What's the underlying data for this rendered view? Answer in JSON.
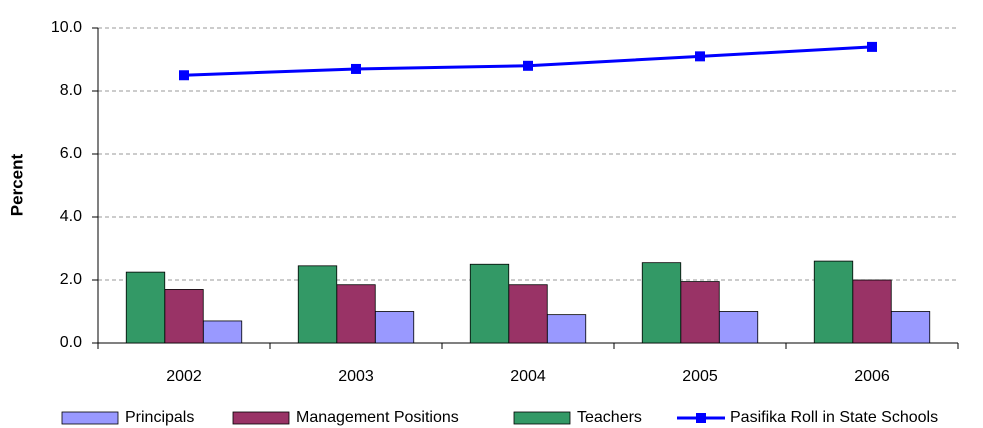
{
  "chart_data": {
    "type": "bar",
    "y_label": "Percent",
    "categories": [
      "2002",
      "2003",
      "2004",
      "2005",
      "2006"
    ],
    "series": [
      {
        "name": "Principals",
        "type": "bar",
        "color": "#9999ff",
        "values": [
          0.7,
          1.0,
          0.9,
          1.0,
          1.0
        ]
      },
      {
        "name": "Management Positions",
        "type": "bar",
        "color": "#993366",
        "values": [
          1.7,
          1.85,
          1.85,
          1.95,
          2.0
        ]
      },
      {
        "name": "Teachers",
        "type": "bar",
        "color": "#339966",
        "values": [
          2.25,
          2.45,
          2.5,
          2.55,
          2.6
        ]
      },
      {
        "name": "Pasifika Roll in State Schools",
        "type": "line",
        "color": "#0000ff",
        "values": [
          8.5,
          8.7,
          8.8,
          9.1,
          9.4
        ]
      }
    ],
    "ylim": [
      0,
      10
    ],
    "yticks": [
      {
        "value": 0,
        "label": "0.0"
      },
      {
        "value": 2,
        "label": "2.0"
      },
      {
        "value": 4,
        "label": "4.0"
      },
      {
        "value": 6,
        "label": "6.0"
      },
      {
        "value": 8,
        "label": "8.0"
      },
      {
        "value": 10,
        "label": "10.0"
      }
    ],
    "grid": true,
    "legend": "bottom"
  }
}
